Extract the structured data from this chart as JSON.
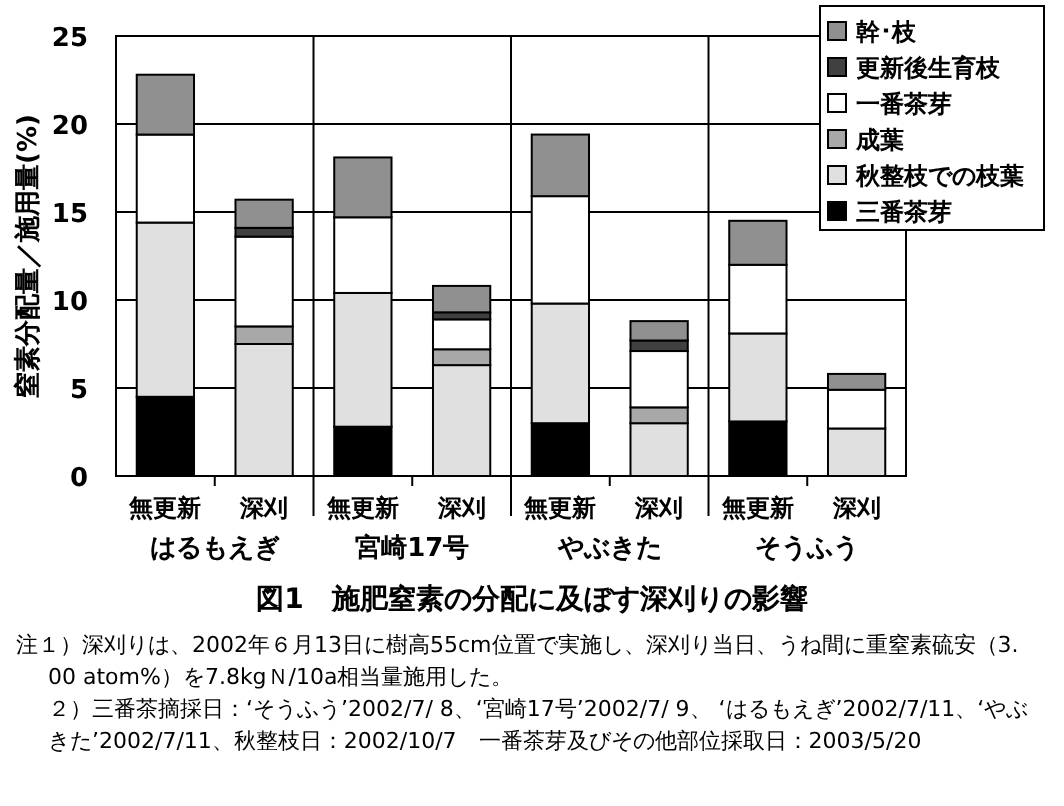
{
  "chart_data": {
    "type": "bar",
    "stacked": true,
    "title": "図1　施肥窒素の分配に及ぼす深刈りの影響",
    "ylabel": "窒素分配量／施用量(%)",
    "categories": [
      "無更新",
      "深刈",
      "無更新",
      "深刈",
      "無更新",
      "深刈",
      "無更新",
      "深刈"
    ],
    "series": [
      {
        "name": "三番茶芽",
        "color": "#000000",
        "values": [
          4.5,
          0,
          2.8,
          0,
          3.0,
          0,
          3.1,
          0
        ]
      },
      {
        "name": "秋整枝での枝葉",
        "color": "#e0e0e0",
        "values": [
          9.9,
          7.5,
          7.6,
          6.3,
          6.8,
          3.0,
          5.0,
          2.7
        ]
      },
      {
        "name": "成葉",
        "color": "#a8a8a8",
        "values": [
          0,
          1.0,
          0,
          0.9,
          0,
          0.9,
          0,
          0
        ]
      },
      {
        "name": "一番茶芽",
        "color": "#ffffff",
        "values": [
          5.0,
          5.1,
          4.3,
          1.7,
          6.1,
          3.2,
          3.9,
          2.2
        ]
      },
      {
        "name": "更新後生育枝",
        "color": "#404040",
        "values": [
          0,
          0.5,
          0,
          0.4,
          0,
          0.6,
          0,
          0
        ]
      },
      {
        "name": "幹･枝",
        "color": "#909090",
        "values": [
          3.4,
          1.6,
          3.4,
          1.5,
          3.5,
          1.1,
          2.5,
          0.9
        ]
      }
    ],
    "ylim": [
      0,
      25
    ],
    "yticks": [
      0,
      5,
      10,
      15,
      20,
      25
    ],
    "grid": "y",
    "legend": "top right",
    "annotations": [
      "はるもえぎ",
      "宮崎17号",
      "やぶきた",
      "そうふう",
      "注１）深刈りは、2002年６月13日に樹高55cm位置で実施し、深刈り当日、うね間に重窒素硫安（3.00 atom%）を7.8kgＮ/10a相当量施用した。",
      "２）三番茶摘採日：‘そうふう’2002/7/ 8、‘宮崎17号’2002/7/ 9、 ‘はるもえぎ’2002/7/11、‘やぶきた’2002/7/11、秋整枝日：2002/10/7　一番茶芽及びその他部位採取日：2003/5/20"
    ]
  }
}
